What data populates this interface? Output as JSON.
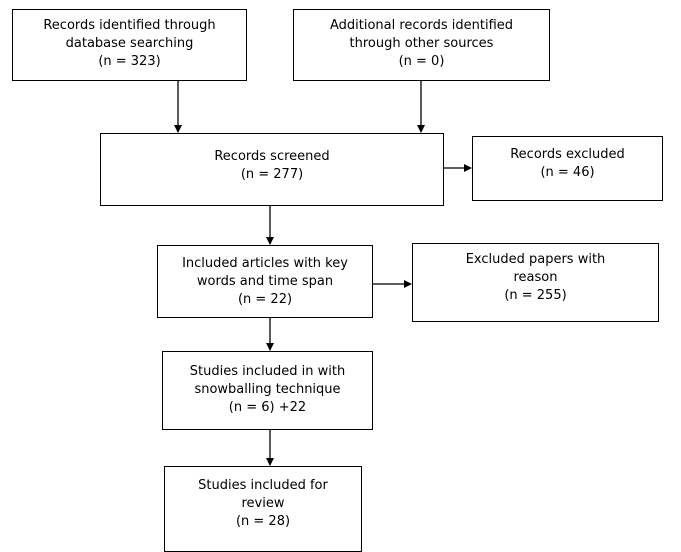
{
  "flowchart": {
    "identification": {
      "database": {
        "line1": "Records identified through",
        "line2": "database searching",
        "count": "(n =   323)"
      },
      "other_sources": {
        "line1": "Additional records identified",
        "line2": "through other sources",
        "count": "(n = 0)"
      }
    },
    "screening": {
      "screened": {
        "line1": "Records screened",
        "count": "(n = 277)"
      },
      "excluded": {
        "line1": "Records excluded",
        "count": "(n = 46)"
      }
    },
    "eligibility": {
      "included_keywords": {
        "line1": "Included articles with key",
        "line2": "words and time span",
        "count": "(n = 22)"
      },
      "excluded_reason": {
        "line1": "Excluded papers with",
        "line2": "reason",
        "count": "(n = 255)"
      }
    },
    "snowballing": {
      "line1": "Studies included in with",
      "line2": "snowballing technique",
      "count": "(n = 6) +22"
    },
    "included": {
      "line1": "Studies included for",
      "line2": "review",
      "count": "(n = 28)"
    }
  },
  "colors": {
    "stroke": "#000000",
    "background": "#ffffff"
  }
}
